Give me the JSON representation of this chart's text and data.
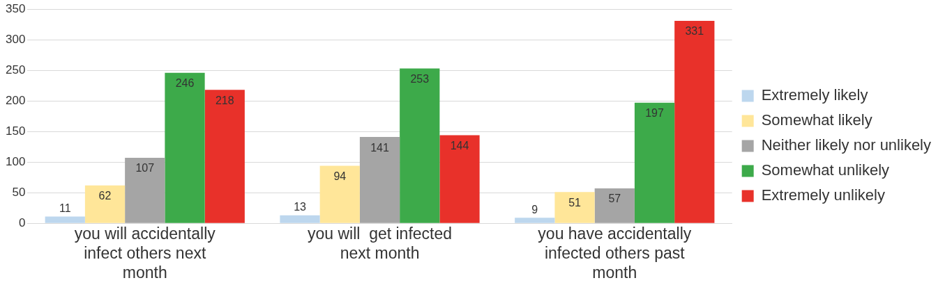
{
  "chart_data": {
    "type": "bar",
    "categories": [
      "you will accidentally infect others next month",
      "you will  get infected next month",
      "you have accidentally infected others past month"
    ],
    "series": [
      {
        "name": "Extremely likely",
        "color": "#bdd7ee",
        "values": [
          11,
          13,
          9
        ]
      },
      {
        "name": "Somewhat likely",
        "color": "#ffe699",
        "values": [
          62,
          94,
          51
        ]
      },
      {
        "name": "Neither likely nor unlikely",
        "color": "#a5a5a5",
        "values": [
          107,
          141,
          57
        ]
      },
      {
        "name": "Somewhat unlikely",
        "color": "#3daa4a",
        "values": [
          246,
          253,
          197
        ]
      },
      {
        "name": "Extremely unlikely",
        "color": "#e8312a",
        "values": [
          218,
          144,
          331
        ]
      }
    ],
    "ylim": [
      0,
      350
    ],
    "yticks": [
      0,
      50,
      100,
      150,
      200,
      250,
      300,
      350
    ],
    "grid": "y",
    "legend": "right",
    "data_labels": true
  }
}
